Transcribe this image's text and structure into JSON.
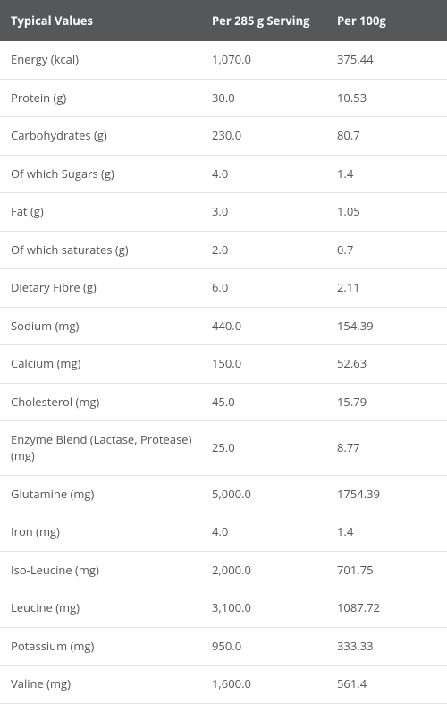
{
  "table": {
    "header_bg": "#555758",
    "header_text_color": "#ffffff",
    "row_text_color": "#555555",
    "row_border_color": "#e4e4e4",
    "font_size_header": 13,
    "font_size_body": 13,
    "columns": [
      {
        "key": "name",
        "label": "Typical Values"
      },
      {
        "key": "serving",
        "label": "Per 285 g Serving"
      },
      {
        "key": "per100",
        "label": "Per 100g"
      }
    ],
    "rows": [
      {
        "name": "Energy (kcal)",
        "serving": "1,070.0",
        "per100": "375.44"
      },
      {
        "name": "Protein (g)",
        "serving": "30.0",
        "per100": "10.53"
      },
      {
        "name": "Carbohydrates (g)",
        "serving": "230.0",
        "per100": "80.7"
      },
      {
        "name": "Of which Sugars (g)",
        "serving": "4.0",
        "per100": "1.4"
      },
      {
        "name": "Fat (g)",
        "serving": "3.0",
        "per100": "1.05"
      },
      {
        "name": "Of which saturates (g)",
        "serving": "2.0",
        "per100": "0.7"
      },
      {
        "name": "Dietary Fibre (g)",
        "serving": "6.0",
        "per100": "2.11"
      },
      {
        "name": "Sodium (mg)",
        "serving": "440.0",
        "per100": "154.39"
      },
      {
        "name": "Calcium (mg)",
        "serving": "150.0",
        "per100": "52.63"
      },
      {
        "name": "Cholesterol (mg)",
        "serving": "45.0",
        "per100": "15.79"
      },
      {
        "name": "Enzyme Blend (Lactase, Protease) (mg)",
        "serving": "25.0",
        "per100": "8.77"
      },
      {
        "name": "Glutamine (mg)",
        "serving": "5,000.0",
        "per100": "1754.39"
      },
      {
        "name": "Iron (mg)",
        "serving": "4.0",
        "per100": "1.4"
      },
      {
        "name": "Iso-Leucine (mg)",
        "serving": "2,000.0",
        "per100": "701.75"
      },
      {
        "name": "Leucine (mg)",
        "serving": "3,100.0",
        "per100": "1087.72"
      },
      {
        "name": "Potassium (mg)",
        "serving": "950.0",
        "per100": "333.33"
      },
      {
        "name": "Valine (mg)",
        "serving": "1,600.0",
        "per100": "561.4"
      }
    ]
  }
}
